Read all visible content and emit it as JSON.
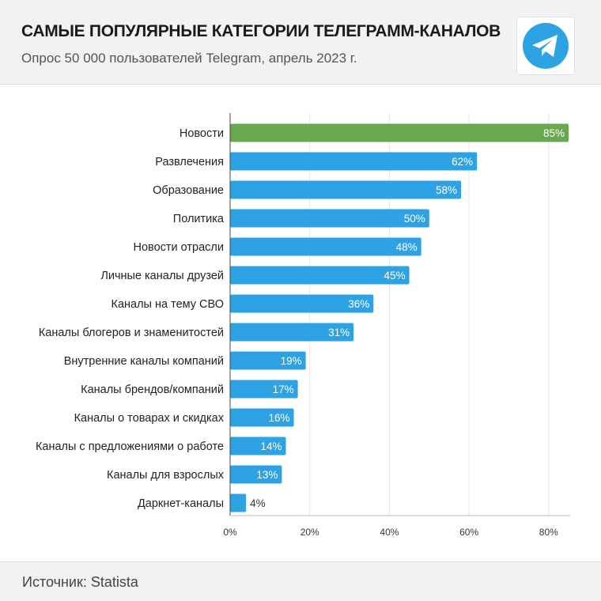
{
  "header": {
    "title": "САМЫЕ ПОПУЛЯРНЫЕ КАТЕГОРИИ ТЕЛЕГРАММ-КАНАЛОВ",
    "subtitle": "Опрос 50 000 пользователей Telegram, апрель 2023 г.",
    "logo_icon": "telegram-logo-icon"
  },
  "footer": {
    "source": "Источник: Statista"
  },
  "colors": {
    "highlight": "#6aa84f",
    "bar": "#2ea3e3",
    "logo": "#2ea3e3",
    "grid": "#e6e6e6",
    "axis": "#444444"
  },
  "chart_data": {
    "type": "bar",
    "orientation": "horizontal",
    "categories": [
      "Новости",
      "Развлечения",
      "Образование",
      "Политика",
      "Новости отрасли",
      "Личные каналы друзей",
      "Каналы на тему СВО",
      "Каналы блогеров и знаменитостей",
      "Внутренние каналы компаний",
      "Каналы брендов/компаний",
      "Каналы о товарах и скидках",
      "Каналы с предложениями о работе",
      "Каналы для взрослых",
      "Даркнет-каналы"
    ],
    "values": [
      85,
      62,
      58,
      50,
      48,
      45,
      36,
      31,
      19,
      17,
      16,
      14,
      13,
      4
    ],
    "value_labels": [
      "85%",
      "62%",
      "58%",
      "50%",
      "48%",
      "45%",
      "36%",
      "31%",
      "19%",
      "17%",
      "16%",
      "14%",
      "13%",
      "4%"
    ],
    "highlight_index": 0,
    "xlim": [
      0,
      85
    ],
    "xticks": [
      0,
      20,
      40,
      60,
      80
    ],
    "xtick_labels": [
      "0%",
      "20%",
      "40%",
      "60%",
      "80%"
    ],
    "grid": true,
    "legend": "none"
  }
}
